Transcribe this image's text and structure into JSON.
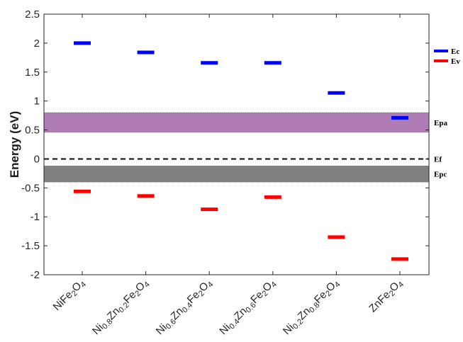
{
  "chart_data": {
    "type": "scatter",
    "ylabel": "Energy (eV)",
    "ylim": [
      -2,
      2.5
    ],
    "yticks": [
      "2.5",
      "2",
      "1.5",
      "1",
      "0.5",
      "0",
      "-0.5",
      "-1",
      "-1.5",
      "-2"
    ],
    "ytick_values": [
      2.5,
      2,
      1.5,
      1,
      0.5,
      0,
      -0.5,
      -1,
      -1.5,
      -2
    ],
    "grid": false,
    "legend_position": "right",
    "categories": [
      {
        "main": "NiFe",
        "subs": [
          [
            "",
            "NiFe"
          ],
          [
            "2",
            "sub"
          ],
          [
            "O",
            ""
          ],
          [
            "4",
            "sub"
          ]
        ]
      },
      {
        "subs": [
          [
            "Ni",
            ""
          ],
          [
            "0.8",
            "sub"
          ],
          [
            "Zn",
            ""
          ],
          [
            "0.2",
            "sub"
          ],
          [
            "Fe",
            ""
          ],
          [
            "2",
            "sub"
          ],
          [
            "O",
            ""
          ],
          [
            "4",
            "sub"
          ]
        ]
      },
      {
        "subs": [
          [
            "Ni",
            ""
          ],
          [
            "0.6",
            "sub"
          ],
          [
            "Zn",
            ""
          ],
          [
            "0.4",
            "sub"
          ],
          [
            "Fe",
            ""
          ],
          [
            "2",
            "sub"
          ],
          [
            "O",
            ""
          ],
          [
            "4",
            "sub"
          ]
        ]
      },
      {
        "subs": [
          [
            "Ni",
            ""
          ],
          [
            "0.4",
            "sub"
          ],
          [
            "Zn",
            ""
          ],
          [
            "0.6",
            "sub"
          ],
          [
            "Fe",
            ""
          ],
          [
            "2",
            "sub"
          ],
          [
            "O",
            ""
          ],
          [
            "4",
            "sub"
          ]
        ]
      },
      {
        "subs": [
          [
            "Ni",
            ""
          ],
          [
            "0.2",
            "sub"
          ],
          [
            "Zn",
            ""
          ],
          [
            "0.8",
            "sub"
          ],
          [
            "Fe",
            ""
          ],
          [
            "2",
            "sub"
          ],
          [
            "O",
            ""
          ],
          [
            "4",
            "sub"
          ]
        ]
      },
      {
        "subs": [
          [
            "ZnFe",
            ""
          ],
          [
            "2",
            "sub"
          ],
          [
            "O",
            ""
          ],
          [
            "4",
            "sub"
          ]
        ]
      }
    ],
    "series": [
      {
        "name": "Ec",
        "color": "#0000ff",
        "values": [
          2.0,
          1.84,
          1.66,
          1.66,
          1.14,
          0.71
        ]
      },
      {
        "name": "Ev",
        "color": "#ff0000",
        "values": [
          -0.56,
          -0.64,
          -0.87,
          -0.66,
          -1.35,
          -1.73
        ]
      }
    ],
    "bands": [
      {
        "name": "Epa",
        "from": 0.46,
        "to": 0.8,
        "color": "#b07cb5"
      },
      {
        "name": "Epc",
        "from": -0.4,
        "to": -0.12,
        "color": "#808080"
      }
    ],
    "lines": [
      {
        "name": "Ef",
        "y": 0,
        "style": "dashed",
        "color": "#000000"
      }
    ]
  }
}
